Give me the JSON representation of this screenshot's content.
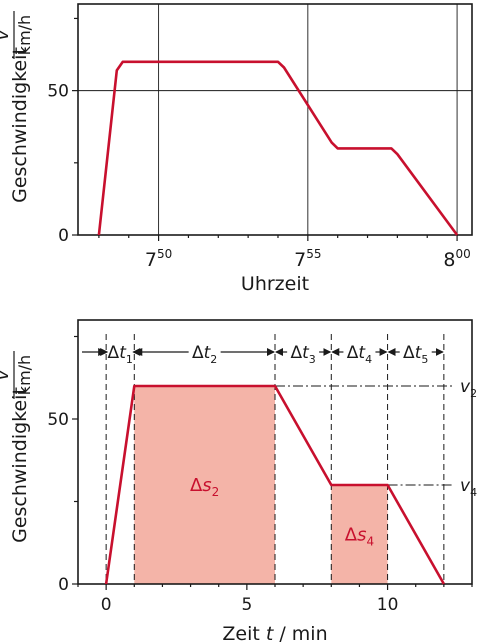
{
  "chart_data": [
    {
      "type": "line",
      "xlabel": "Uhrzeit",
      "ylabel": "Geschwindigkeit",
      "yunit_num": "v",
      "yunit_den": "km/h",
      "x_unit": "minutes after 7:00",
      "xlim": [
        47.3,
        60.5
      ],
      "ylim": [
        0,
        80
      ],
      "x_ticks": [
        {
          "value": 50,
          "base": "7",
          "sup": "50"
        },
        {
          "value": 55,
          "base": "7",
          "sup": "55"
        },
        {
          "value": 60,
          "base": "8",
          "sup": "00"
        }
      ],
      "y_ticks": [
        0,
        50
      ],
      "grid": true,
      "series": [
        {
          "x": [
            48,
            48.6,
            48.8,
            54,
            54.2,
            55.8,
            56,
            57.8,
            58,
            60
          ],
          "y": [
            0,
            57,
            60,
            60,
            58,
            32,
            30,
            30,
            28,
            0
          ]
        }
      ]
    },
    {
      "type": "area",
      "xlabel_left": "Zeit",
      "xlabel_symbol": "t",
      "xlabel_unit": "/ min",
      "ylabel": "Geschwindigkeit",
      "yunit_num": "v",
      "yunit_den": "km/h",
      "xlim": [
        -1,
        13
      ],
      "ylim": [
        0,
        80
      ],
      "x_ticks": [
        0,
        5,
        10
      ],
      "y_ticks": [
        0,
        50
      ],
      "grid": false,
      "series": [
        {
          "x": [
            0,
            1,
            6,
            8,
            10,
            12
          ],
          "y": [
            0,
            60,
            60,
            30,
            30,
            0
          ]
        }
      ],
      "interval_bounds": [
        0,
        1,
        6,
        8,
        10,
        12
      ],
      "intervals": [
        {
          "delta": "Δ",
          "var": "t",
          "sub": "1",
          "from": 0,
          "to": 1
        },
        {
          "delta": "Δ",
          "var": "t",
          "sub": "2",
          "from": 1,
          "to": 6
        },
        {
          "delta": "Δ",
          "var": "t",
          "sub": "3",
          "from": 6,
          "to": 8
        },
        {
          "delta": "Δ",
          "var": "t",
          "sub": "4",
          "from": 8,
          "to": 10
        },
        {
          "delta": "Δ",
          "var": "t",
          "sub": "5",
          "from": 10,
          "to": 12
        }
      ],
      "shaded": [
        {
          "from": 1,
          "to": 6,
          "value": 60,
          "delta": "Δ",
          "var": "s",
          "sub": "2"
        },
        {
          "from": 8,
          "to": 10,
          "value": 30,
          "delta": "Δ",
          "var": "s",
          "sub": "4"
        }
      ],
      "reference_lines": [
        {
          "value": 60,
          "from": 6,
          "var": "v",
          "sub": "2"
        },
        {
          "value": 30,
          "from": 10,
          "var": "v",
          "sub": "4"
        }
      ]
    }
  ],
  "colors": {
    "curve": "#c8102e",
    "fill": "#f4b4a8",
    "ink": "#1a1a1a"
  }
}
